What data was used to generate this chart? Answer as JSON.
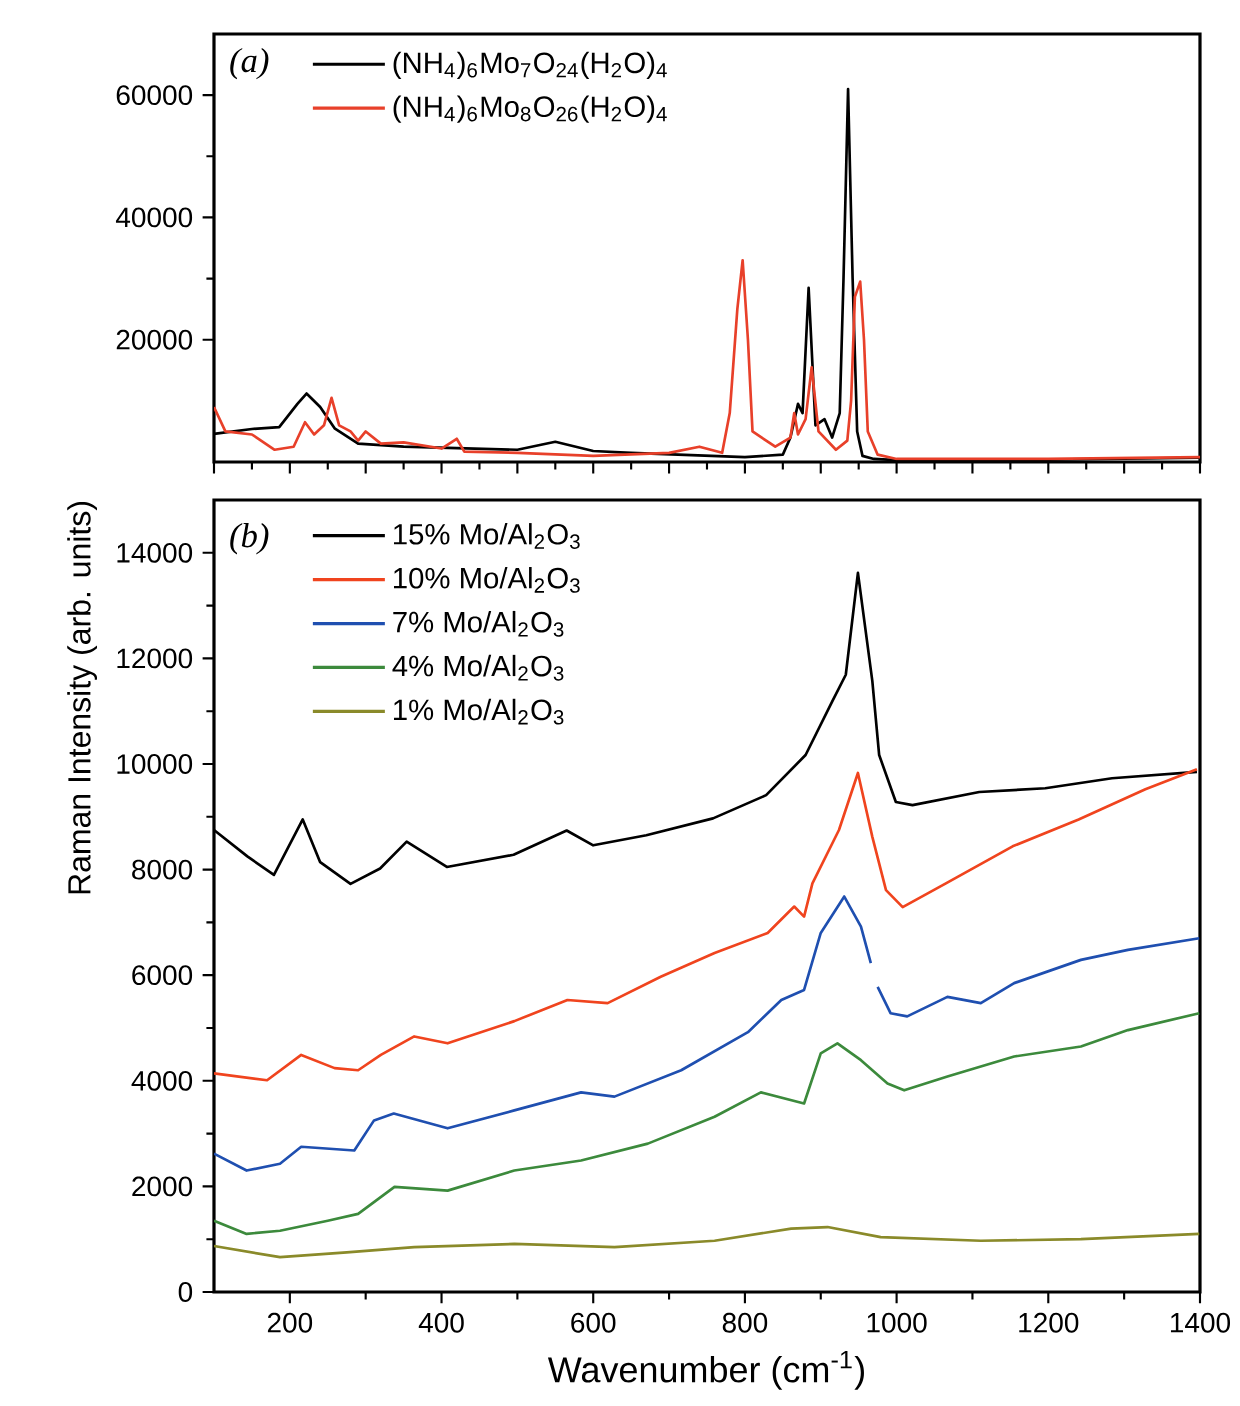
{
  "chart_data": [
    {
      "type": "line",
      "annotations": [
        "(a)"
      ],
      "xlim": [
        100,
        1400
      ],
      "ylim": [
        0,
        70000
      ],
      "yticks": [
        20000,
        40000,
        60000
      ],
      "tick_labels": "y",
      "legend": "top left",
      "series": [
        {
          "name": "(NH$_{4}$)$_{6}$Mo$_{7}$O$_{24}$(H$_{2}$O)$_{4}$",
          "color": "#000000",
          "x": [
            100,
            150,
            186,
            210,
            222,
            240,
            259,
            290,
            350,
            500,
            550,
            600,
            650,
            800,
            850,
            860,
            870,
            876,
            884,
            893,
            905,
            915,
            925,
            930,
            936,
            942,
            948,
            955,
            970,
            1000,
            1200,
            1400
          ],
          "values": [
            4600,
            5400,
            5700,
            9500,
            11200,
            9000,
            5500,
            3000,
            2500,
            2000,
            3300,
            1800,
            1500,
            800,
            1200,
            4000,
            9500,
            8000,
            28500,
            6000,
            7000,
            4000,
            8000,
            30000,
            61000,
            30000,
            5000,
            1000,
            500,
            300,
            400,
            700
          ]
        },
        {
          "name": "(NH$_{4}$)$_{6}$Mo$_{8}$O$_{26}$(H$_{2}$O)$_{4}$",
          "color": "#e8402a",
          "x": [
            100,
            115,
            150,
            180,
            205,
            220,
            232,
            245,
            255,
            265,
            280,
            290,
            300,
            320,
            350,
            400,
            420,
            430,
            500,
            600,
            700,
            740,
            770,
            780,
            790,
            797,
            804,
            810,
            840,
            860,
            865,
            870,
            880,
            888,
            897,
            920,
            935,
            940,
            945,
            952,
            957,
            962,
            975,
            1000,
            1200,
            1400
          ],
          "values": [
            9000,
            5000,
            4500,
            2000,
            2500,
            6500,
            4500,
            6000,
            10500,
            6000,
            5000,
            3500,
            5000,
            3000,
            3200,
            2200,
            3800,
            1700,
            1500,
            1000,
            1500,
            2500,
            1500,
            8000,
            25000,
            33000,
            20000,
            5000,
            2500,
            4000,
            8000,
            4500,
            7000,
            15500,
            5000,
            2000,
            3500,
            10000,
            27000,
            29500,
            20000,
            5000,
            1200,
            500,
            500,
            800
          ]
        }
      ]
    },
    {
      "type": "line",
      "annotations": [
        "(b)"
      ],
      "xlabel": "Wavenumber (cm$^{-1}$)",
      "ylabel": "Raman Intensity (arb. units)",
      "xlim": [
        100,
        1400
      ],
      "ylim": [
        0,
        15000
      ],
      "xticks": [
        200,
        400,
        600,
        800,
        1000,
        1200,
        1400
      ],
      "yticks": [
        0,
        2000,
        4000,
        6000,
        8000,
        10000,
        12000,
        14000
      ],
      "legend": "top left",
      "series": [
        {
          "name": "15% Mo/Al$_{2}$O$_{3}$",
          "color": "#000000",
          "x": [
            100,
            144,
            179,
            217,
            240,
            280,
            319,
            354,
            407,
            495,
            565,
            600,
            670,
            758,
            828,
            880,
            915,
            933,
            949,
            968,
            977,
            999,
            1021,
            1109,
            1196,
            1284,
            1396
          ],
          "values": [
            8750,
            8250,
            7900,
            8950,
            8140,
            7730,
            8020,
            8530,
            8050,
            8280,
            8740,
            8460,
            8650,
            8970,
            9410,
            10170,
            11180,
            11690,
            13620,
            11570,
            10170,
            9280,
            9220,
            9470,
            9540,
            9730,
            9850
          ]
        },
        {
          "name": "10% Mo/Al$_{2}$O$_{3}$",
          "color": "#f0441e",
          "x": [
            100,
            170,
            215,
            259,
            290,
            320,
            364,
            408,
            496,
            566,
            619,
            689,
            760,
            830,
            865,
            878,
            889,
            924,
            949,
            968,
            986,
            1008,
            1065,
            1153,
            1240,
            1328,
            1396
          ],
          "values": [
            4140,
            4010,
            4490,
            4240,
            4200,
            4490,
            4840,
            4710,
            5130,
            5530,
            5470,
            5970,
            6420,
            6800,
            7300,
            7110,
            7740,
            8750,
            9830,
            8620,
            7610,
            7290,
            7740,
            8440,
            8950,
            9520,
            9900
          ]
        },
        {
          "name": "7% Mo/Al$_{2}$O$_{3}$",
          "color": "#1f4fb0",
          "x": [
            100,
            143,
            187,
            215,
            285,
            311,
            337,
            408,
            496,
            584,
            628,
            716,
            804,
            848,
            878,
            900,
            931,
            953,
            966,
            970,
            975,
            992,
            1014,
            1067,
            1111,
            1155,
            1243,
            1305,
            1399
          ],
          "values": [
            2620,
            2300,
            2430,
            2750,
            2680,
            3250,
            3380,
            3100,
            3440,
            3780,
            3700,
            4200,
            4920,
            5530,
            5720,
            6800,
            7490,
            6920,
            6230,
            null,
            5780,
            5280,
            5220,
            5590,
            5470,
            5850,
            6290,
            6480,
            6700
          ]
        },
        {
          "name": "4% Mo/Al$_{2}$O$_{3}$",
          "color": "#3c8a3c",
          "x": [
            100,
            143,
            187,
            250,
            290,
            338,
            408,
            496,
            584,
            672,
            760,
            821,
            878,
            900,
            922,
            953,
            988,
            1010,
            1067,
            1155,
            1243,
            1305,
            1399
          ],
          "values": [
            1350,
            1100,
            1160,
            1350,
            1480,
            1990,
            1920,
            2300,
            2490,
            2810,
            3320,
            3780,
            3570,
            4520,
            4710,
            4390,
            3950,
            3820,
            4080,
            4460,
            4650,
            4960,
            5280
          ]
        },
        {
          "name": "1% Mo/Al$_{2}$O$_{3}$",
          "color": "#8a8a2a",
          "x": [
            100,
            187,
            275,
            364,
            496,
            628,
            760,
            861,
            909,
            979,
            1111,
            1243,
            1399
          ],
          "values": [
            870,
            660,
            750,
            850,
            910,
            850,
            970,
            1200,
            1230,
            1040,
            970,
            1000,
            1100
          ]
        }
      ]
    }
  ]
}
